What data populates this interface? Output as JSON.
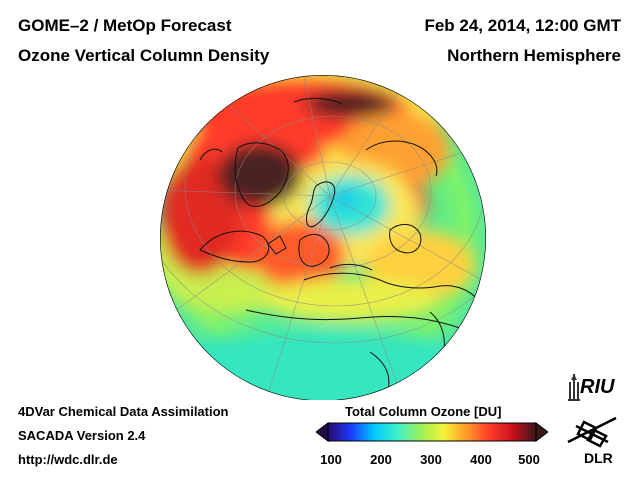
{
  "header": {
    "product": "GOME–2 / MetOp Forecast",
    "datetime": "Feb 24, 2014, 12:00 GMT",
    "quantity": "Ozone Vertical Column Density",
    "region": "Northern Hemisphere"
  },
  "footer": {
    "method": "4DVar Chemical Data Assimilation",
    "version": "SACADA Version 2.4",
    "url": "http://wdc.dlr.de"
  },
  "colorbar": {
    "title": "Total Column Ozone [DU]",
    "min": 100,
    "max": 500,
    "ticks": [
      "100",
      "200",
      "300",
      "400",
      "500"
    ],
    "colors": [
      "#2a0a6e",
      "#1c3cff",
      "#00c8ff",
      "#3cf2c8",
      "#9cf05a",
      "#f5f23a",
      "#ff9a28",
      "#ff3a2a",
      "#c8101e",
      "#3a1818"
    ]
  },
  "logos": {
    "riu": "RIU",
    "dlr": "DLR"
  }
}
